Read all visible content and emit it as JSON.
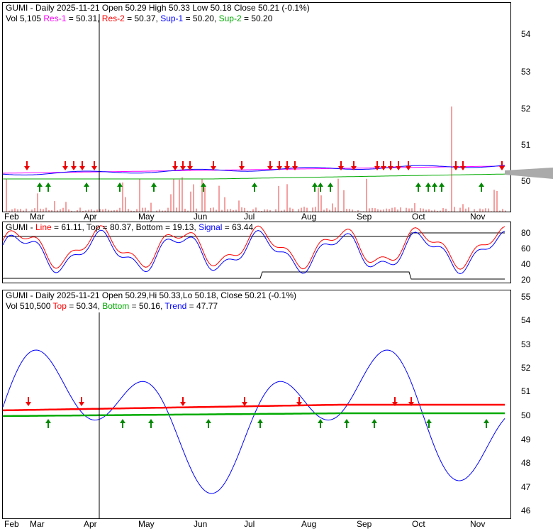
{
  "chart_data": [
    {
      "type": "line",
      "title": "GUMI - Daily 2025-11-21 Open 50.29  High 50.33  Low 50.18  Close 50.21 (-0.1%)",
      "legend": {
        "vol": "Vol 5,105",
        "res1": "Res-1",
        "res1_val": " = 50.31,",
        "res2": "Res-2",
        "res2_val": " = 50.37,",
        "sup1": "Sup-1",
        "sup1_val": " = 50.20,",
        "sup2": "Sup-2",
        "sup2_val": " = 50.20"
      },
      "yticks": [
        "54",
        "53",
        "52",
        "51",
        "50"
      ],
      "ylim": [
        49.2,
        54.9
      ],
      "xticks": [
        "Feb",
        "Mar",
        "Apr",
        "May",
        "Jun",
        "Jul",
        "Aug",
        "Sep",
        "Oct",
        "Nov"
      ],
      "close": 50.21
    },
    {
      "type": "line",
      "legend": {
        "name": "GUMI - ",
        "line": "Line",
        "line_val": " = 61.11, Top = 80.37, Bottom = 19.13, ",
        "signal": "Signal",
        "signal_val": " = 63.44"
      },
      "yticks": [
        "80",
        "60",
        "40",
        "20"
      ],
      "ylim": [
        15,
        85
      ],
      "series": [
        {
          "name": "Line",
          "last": 61.11
        },
        {
          "name": "Top",
          "last": 80.37
        },
        {
          "name": "Bottom",
          "last": 19.13
        },
        {
          "name": "Signal",
          "last": 63.44
        }
      ]
    },
    {
      "type": "line",
      "title": "GUMI - Daily 2025-11-21 Open 50.29,Hi 50.33,Lo 50.18, Close 50.21 (-0.1%)",
      "legend": {
        "vol": "Vol 510,500 ",
        "top": "Top",
        "top_val": " = 50.34, ",
        "bottom": "Bottom",
        "bottom_val": " = 50.16, ",
        "trend": "Trend",
        "trend_val": " = 47.77"
      },
      "yticks": [
        "55",
        "54",
        "53",
        "52",
        "51",
        "50",
        "49",
        "48",
        "47",
        "46"
      ],
      "ylim": [
        45.7,
        55.3
      ],
      "xticks": [
        "Feb",
        "Mar",
        "Apr",
        "May",
        "Jun",
        "Jul",
        "Aug",
        "Sep",
        "Oct",
        "Nov"
      ],
      "series": [
        {
          "name": "Top",
          "last": 50.34
        },
        {
          "name": "Bottom",
          "last": 50.16
        },
        {
          "name": "Trend",
          "last": 47.77
        }
      ]
    }
  ]
}
